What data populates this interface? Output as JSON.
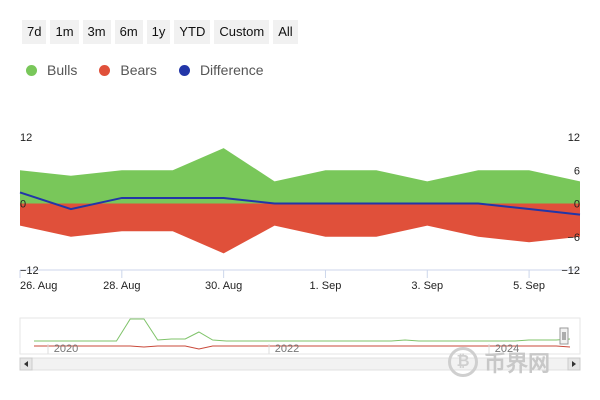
{
  "range_buttons": [
    "7d",
    "1m",
    "3m",
    "6m",
    "1y",
    "YTD",
    "Custom",
    "All"
  ],
  "colors": {
    "bulls": "#79c75a",
    "bears": "#e0503a",
    "difference": "#2236a8",
    "navigator_bulls": "#7fc36a",
    "navigator_bears": "#c9493a"
  },
  "chart_data": {
    "type": "area",
    "legend": {
      "position": "top-left"
    },
    "x": [
      "2024-08-26",
      "2024-08-27",
      "2024-08-28",
      "2024-08-29",
      "2024-08-30",
      "2024-08-31",
      "2024-09-01",
      "2024-09-02",
      "2024-09-03",
      "2024-09-04",
      "2024-09-05",
      "2024-09-06"
    ],
    "x_tick_labels": [
      "26. Aug",
      "28. Aug",
      "30. Aug",
      "1. Sep",
      "3. Sep",
      "5. Sep"
    ],
    "x_tick_dates": [
      "2024-08-26",
      "2024-08-28",
      "2024-08-30",
      "2024-09-01",
      "2024-09-03",
      "2024-09-05"
    ],
    "series": [
      {
        "name": "Bulls",
        "values": [
          6,
          5,
          6,
          6,
          10,
          4,
          6,
          6,
          4,
          6,
          6,
          4
        ]
      },
      {
        "name": "Bears",
        "values": [
          -4,
          -6,
          -5,
          -5,
          -9,
          -4,
          -6,
          -6,
          -4,
          -6,
          -7,
          -6
        ]
      },
      {
        "name": "Difference",
        "values": [
          2,
          -1,
          1,
          1,
          1,
          0,
          0,
          0,
          0,
          0,
          -1,
          -2
        ]
      }
    ],
    "left_axis": {
      "ticks": [
        12,
        0,
        -12
      ],
      "labels": [
        "12",
        "0",
        "−12"
      ]
    },
    "right_axis": {
      "ticks": [
        12,
        6,
        0,
        -6,
        -12
      ],
      "labels": [
        "12",
        "6",
        "0",
        "−6",
        "−12"
      ]
    },
    "ylim": [
      -12,
      12
    ],
    "grid": false,
    "navigator": {
      "tick_labels": [
        "2020",
        "2022",
        "2024"
      ],
      "bulls": [
        0.3,
        0.3,
        0.3,
        0.3,
        0.3,
        0.3,
        0.3,
        2.5,
        2.5,
        0.4,
        0.5,
        0.5,
        1.2,
        0.4,
        0.3,
        0.3,
        0.3,
        0.3,
        0.3,
        0.3,
        0.3,
        0.3,
        0.3,
        0.3,
        0.3,
        0.3,
        0.3,
        0.4,
        0.3,
        0.3,
        0.3,
        0.3,
        0.3,
        0.3,
        0.3,
        0.3,
        0.4,
        0.4,
        0.4,
        0.5
      ],
      "bears": [
        -0.2,
        -0.2,
        -0.2,
        -0.2,
        -0.2,
        -0.2,
        -0.2,
        -0.2,
        -0.3,
        -0.2,
        -0.2,
        -0.2,
        -0.5,
        -0.2,
        -0.2,
        -0.2,
        -0.2,
        -0.2,
        -0.2,
        -0.2,
        -0.2,
        -0.2,
        -0.2,
        -0.2,
        -0.2,
        -0.2,
        -0.2,
        -0.2,
        -0.2,
        -0.2,
        -0.2,
        -0.2,
        -0.2,
        -0.2,
        -0.2,
        -0.2,
        -0.2,
        -0.2,
        -0.2,
        -0.3
      ]
    }
  },
  "watermark_text": "币界网"
}
